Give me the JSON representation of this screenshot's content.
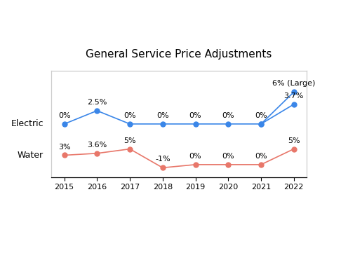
{
  "chart_data": {
    "type": "line",
    "title": "General Service Price Adjustments",
    "x": [
      2015,
      2016,
      2017,
      2018,
      2019,
      2020,
      2021,
      2022
    ],
    "xlim": [
      2014.6,
      2022.4
    ],
    "xticks": [
      2015,
      2016,
      2017,
      2018,
      2019,
      2020,
      2021,
      2022
    ],
    "ylim": [
      -10,
      10
    ],
    "yticks": [],
    "y2lim": [
      -4,
      30
    ],
    "y2ticks": [],
    "grid": false,
    "data_labels": true,
    "tick_labels": "x",
    "marker": "o",
    "series": [
      {
        "name": "Electric",
        "color": "#3a86e8",
        "values": [
          0,
          2.5,
          0,
          0,
          0,
          0,
          0,
          3.7
        ],
        "value_labels": [
          "0%",
          "2.5%",
          "0%",
          "0%",
          "0%",
          "0%",
          "0%",
          "3.7%"
        ]
      },
      {
        "color": "#3a86e8",
        "values": [
          null,
          null,
          null,
          null,
          null,
          null,
          0,
          6
        ],
        "value_labels": [
          null,
          null,
          null,
          null,
          null,
          null,
          null,
          "6% (Large)"
        ]
      },
      {
        "name": "Water",
        "color": "#e8776a",
        "axis": "y2",
        "values": [
          3,
          3.6,
          5,
          -1,
          0,
          0,
          0,
          5
        ],
        "value_labels": [
          "3%",
          "3.6%",
          "5%",
          "-1%",
          "0%",
          "0%",
          "0%",
          "5%"
        ]
      }
    ]
  }
}
